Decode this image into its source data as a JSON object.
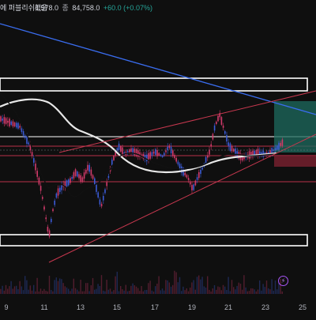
{
  "header": {
    "ohlc_text": "4,578.0",
    "low_label": "종",
    "low_value": "84,758.0",
    "change": "+60.0 (+0.07%)",
    "notice": "에 퍼블리쉬했음"
  },
  "x_ticks": [
    "9",
    "11",
    "13",
    "15",
    "17",
    "19",
    "21",
    "23",
    "25"
  ],
  "colors": {
    "background": "#0f0f0f",
    "candle_up": "#3b5bd6",
    "candle_down": "#d23a6a",
    "ma_long": "#e8e8e8",
    "ma_short": "#111111",
    "trend_blue": "#3a6df0",
    "channel_red": "#c8384f",
    "level_white": "#ffffff",
    "level_red": "#b8324a",
    "long_target": "#1e6b5f",
    "long_stop": "#7a2030"
  },
  "icons": {
    "alert": "lightning-icon"
  }
}
